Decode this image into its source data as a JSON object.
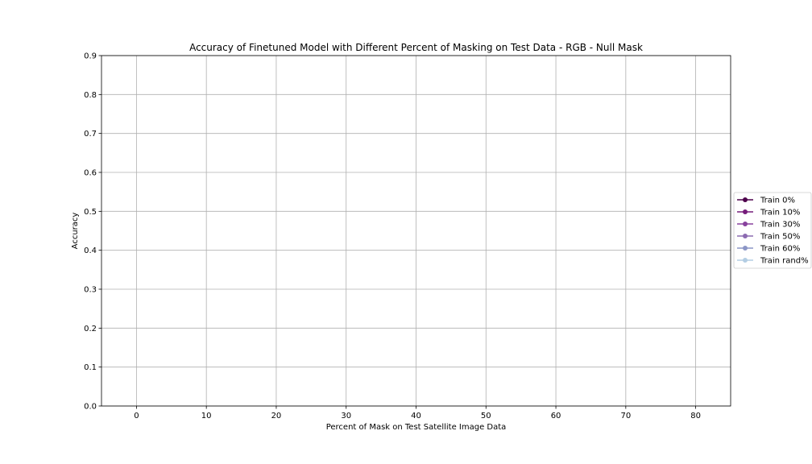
{
  "chart_data": {
    "type": "line",
    "title": "Accuracy of Finetuned Model with Different Percent of Masking on Test Data - RGB - Null Mask",
    "xlabel": "Percent of Mask on Test Satellite Image Data",
    "ylabel": "Accuracy",
    "xlim": [
      -5,
      85
    ],
    "ylim": [
      0.0,
      0.9
    ],
    "xticks": [
      0,
      10,
      20,
      30,
      40,
      50,
      60,
      70,
      80
    ],
    "yticks": [
      0.0,
      0.1,
      0.2,
      0.3,
      0.4,
      0.5,
      0.6,
      0.7,
      0.8,
      0.9
    ],
    "xtick_labels": [
      "0",
      "10",
      "20",
      "30",
      "40",
      "50",
      "60",
      "70",
      "80"
    ],
    "ytick_labels": [
      "0.0",
      "0.1",
      "0.2",
      "0.3",
      "0.4",
      "0.5",
      "0.6",
      "0.7",
      "0.8",
      "0.9"
    ],
    "grid": true,
    "legend_position": "right-outside",
    "series": [
      {
        "name": "Train 0%",
        "color": "#4d004b",
        "marker": "circle",
        "x": [],
        "y": []
      },
      {
        "name": "Train 10%",
        "color": "#751b7a",
        "marker": "circle",
        "x": [],
        "y": []
      },
      {
        "name": "Train 30%",
        "color": "#88419d",
        "marker": "circle",
        "x": [],
        "y": []
      },
      {
        "name": "Train 50%",
        "color": "#8c6bb1",
        "marker": "circle",
        "x": [],
        "y": []
      },
      {
        "name": "Train 60%",
        "color": "#8c96c6",
        "marker": "circle",
        "x": [],
        "y": []
      },
      {
        "name": "Train rand%",
        "color": "#b3cde3",
        "marker": "circle",
        "x": [],
        "y": []
      }
    ]
  }
}
